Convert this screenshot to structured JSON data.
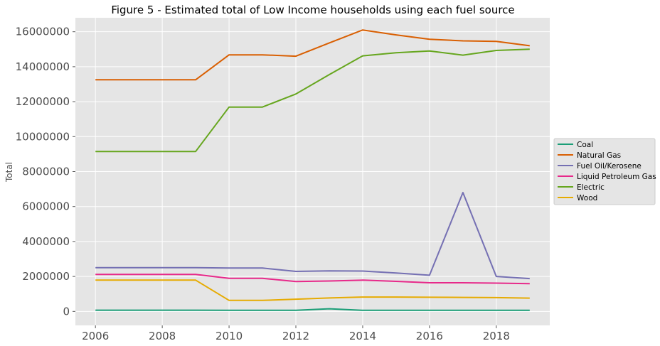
{
  "chart_data": {
    "type": "line",
    "title": "Figure 5 - Estimated total of Low Income households using each fuel source",
    "xlabel": "",
    "ylabel": "Total",
    "xlim": [
      2005.4,
      2019.6
    ],
    "ylim": [
      -800000,
      16800000
    ],
    "x_ticks": [
      2006,
      2008,
      2010,
      2012,
      2014,
      2016,
      2018
    ],
    "y_ticks": [
      0,
      2000000,
      4000000,
      6000000,
      8000000,
      10000000,
      12000000,
      14000000,
      16000000
    ],
    "grid": true,
    "legend_position": "center-right",
    "x": [
      2006,
      2007,
      2008,
      2009,
      2010,
      2011,
      2012,
      2013,
      2014,
      2015,
      2016,
      2017,
      2018,
      2019
    ],
    "series": [
      {
        "name": "Coal",
        "color": "#1b9e77",
        "values": [
          70000,
          70000,
          70000,
          70000,
          60000,
          60000,
          60000,
          150000,
          60000,
          60000,
          60000,
          60000,
          60000,
          60000
        ]
      },
      {
        "name": "Natural Gas",
        "color": "#d95f02",
        "values": [
          13250000,
          13250000,
          13250000,
          13250000,
          14680000,
          14680000,
          14600000,
          15360000,
          16100000,
          15820000,
          15570000,
          15480000,
          15450000,
          15200000
        ]
      },
      {
        "name": "Fuel Oil/Kerosene",
        "color": "#7570b3",
        "values": [
          2500000,
          2500000,
          2500000,
          2500000,
          2480000,
          2480000,
          2290000,
          2320000,
          2310000,
          2200000,
          2070000,
          6800000,
          2000000,
          1880000
        ]
      },
      {
        "name": "Liquid Petroleum Gas",
        "color": "#e7298a",
        "values": [
          2120000,
          2120000,
          2120000,
          2120000,
          1890000,
          1890000,
          1710000,
          1740000,
          1790000,
          1720000,
          1640000,
          1640000,
          1620000,
          1590000
        ]
      },
      {
        "name": "Electric",
        "color": "#66a61e",
        "values": [
          9150000,
          9150000,
          9150000,
          9150000,
          11690000,
          11690000,
          12440000,
          13550000,
          14620000,
          14800000,
          14900000,
          14660000,
          14930000,
          15000000
        ]
      },
      {
        "name": "Wood",
        "color": "#e6ab02",
        "values": [
          1790000,
          1790000,
          1790000,
          1790000,
          630000,
          630000,
          700000,
          770000,
          820000,
          820000,
          810000,
          800000,
          790000,
          760000
        ]
      }
    ]
  }
}
